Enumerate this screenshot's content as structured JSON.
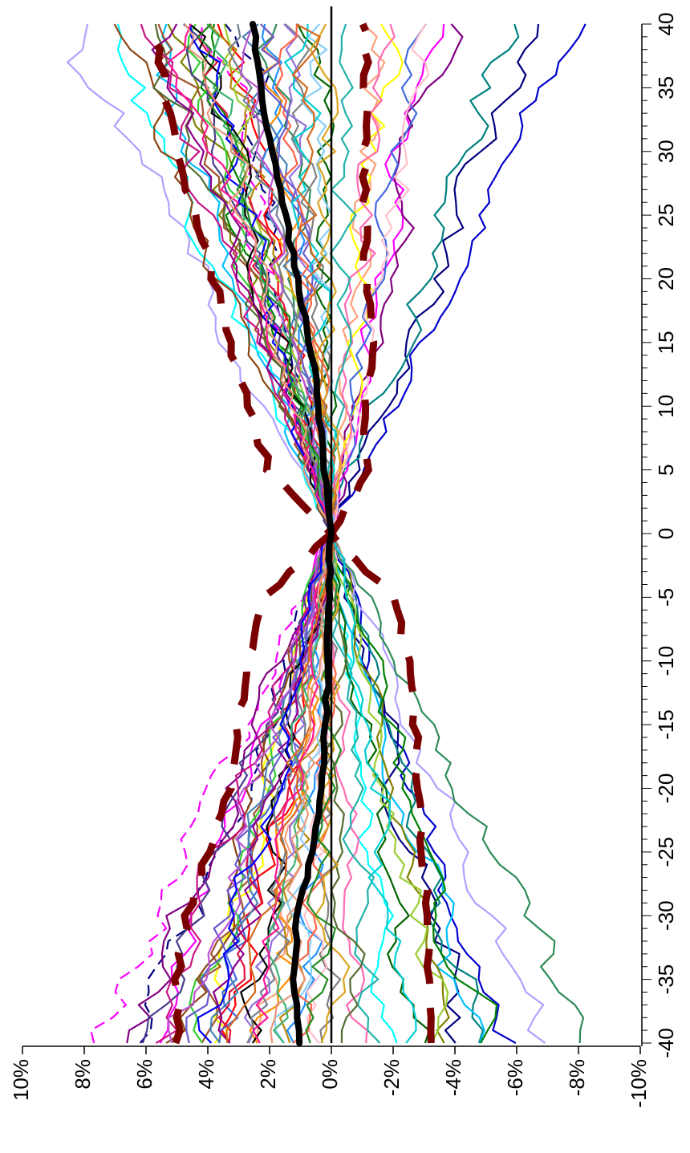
{
  "chart_data": {
    "type": "line",
    "orientation": "rotated-90",
    "x": [
      -40,
      -39,
      -38,
      -37,
      -36,
      -35,
      -34,
      -33,
      -32,
      -31,
      -30,
      -29,
      -28,
      -27,
      -26,
      -25,
      -24,
      -23,
      -22,
      -21,
      -20,
      -19,
      -18,
      -17,
      -16,
      -15,
      -14,
      -13,
      -12,
      -11,
      -10,
      -9,
      -8,
      -7,
      -6,
      -5,
      -4,
      -3,
      -2,
      -1,
      0,
      1,
      2,
      3,
      4,
      5,
      6,
      7,
      8,
      9,
      10,
      11,
      12,
      13,
      14,
      15,
      16,
      17,
      18,
      19,
      20,
      21,
      22,
      23,
      24,
      25,
      26,
      27,
      28,
      29,
      30,
      31,
      32,
      33,
      34,
      35,
      36,
      37,
      38,
      39,
      40
    ],
    "xlim": [
      -40,
      40
    ],
    "ylim": [
      -0.1,
      0.1
    ],
    "x_ticks": [
      "-40",
      "-35",
      "-30",
      "-25",
      "-20",
      "-15",
      "-10",
      "-5",
      "0",
      "5",
      "10",
      "15",
      "20",
      "25",
      "30",
      "35",
      "40"
    ],
    "y_ticks": [
      "10%",
      "8%",
      "6%",
      "4%",
      "2%",
      "0%",
      "-2%",
      "-4%",
      "-6%",
      "-8%",
      "-10%"
    ],
    "grid": false,
    "legend": "none",
    "mean_series": {
      "color": "#000000",
      "anchors_x": [
        -40,
        -35,
        -30,
        -25,
        -20,
        -15,
        -10,
        -5,
        0,
        5,
        10,
        15,
        20,
        25,
        30,
        35,
        40
      ],
      "anchors_y": [
        0.01,
        0.012,
        0.011,
        0.006,
        0.003,
        0.002,
        0.001,
        0.001,
        0.0,
        0.002,
        0.004,
        0.007,
        0.011,
        0.015,
        0.019,
        0.023,
        0.025
      ]
    },
    "band_upper": {
      "color": "#7b0000",
      "anchors_x": [
        -40,
        -35,
        -30,
        -25,
        -20,
        -15,
        -10,
        -5,
        0,
        5,
        10,
        15,
        20,
        25,
        30,
        35,
        40
      ],
      "anchors_y": [
        0.05,
        0.05,
        0.047,
        0.04,
        0.033,
        0.03,
        0.027,
        0.022,
        0.0,
        0.02,
        0.027,
        0.033,
        0.038,
        0.044,
        0.05,
        0.054,
        0.058
      ]
    },
    "band_lower": {
      "color": "#7b0000",
      "anchors_x": [
        -40,
        -35,
        -30,
        -25,
        -20,
        -15,
        -10,
        -5,
        0,
        5,
        10,
        15,
        20,
        25,
        30,
        35,
        40
      ],
      "anchors_y": [
        -0.032,
        -0.031,
        -0.031,
        -0.029,
        -0.028,
        -0.027,
        -0.025,
        -0.02,
        0.0,
        -0.012,
        -0.011,
        -0.013,
        -0.011,
        -0.011,
        -0.011,
        -0.011,
        -0.011
      ]
    },
    "zero_line": 0,
    "background_series": [
      {
        "color": "#0000cc",
        "dashed": false,
        "left": -0.055,
        "right": -0.08
      },
      {
        "color": "#000080",
        "dashed": false,
        "left": -0.043,
        "right": -0.068
      },
      {
        "color": "#008080",
        "dashed": false,
        "left": -0.05,
        "right": -0.058
      },
      {
        "color": "#00bfff",
        "dashed": false,
        "left": -0.045,
        "right": 0.06
      },
      {
        "color": "#ff00ff",
        "dashed": true,
        "left": 0.075,
        "right": 0.04
      },
      {
        "color": "#000080",
        "dashed": true,
        "left": 0.06,
        "right": 0.03
      },
      {
        "color": "#808000",
        "dashed": false,
        "left": -0.04,
        "right": 0.05
      },
      {
        "color": "#b0a0ff",
        "dashed": false,
        "left": -0.07,
        "right": 0.085
      },
      {
        "color": "#2e8b57",
        "dashed": false,
        "left": -0.085,
        "right": 0.02
      },
      {
        "color": "#ff00ff",
        "dashed": false,
        "left": 0.055,
        "right": -0.03
      },
      {
        "color": "#800080",
        "dashed": false,
        "left": 0.065,
        "right": -0.035
      },
      {
        "color": "#008000",
        "dashed": false,
        "left": -0.05,
        "right": 0.045
      },
      {
        "color": "#ffa07a",
        "dashed": false,
        "left": 0.02,
        "right": -0.015
      },
      {
        "color": "#ffff00",
        "dashed": false,
        "left": 0.04,
        "right": -0.02
      },
      {
        "color": "#00ffff",
        "dashed": false,
        "left": -0.02,
        "right": 0.07
      },
      {
        "color": "#ff0000",
        "dashed": false,
        "left": 0.03,
        "right": 0.03
      },
      {
        "color": "#a0522d",
        "dashed": false,
        "left": 0.045,
        "right": 0.055
      },
      {
        "color": "#4169e1",
        "dashed": false,
        "left": 0.035,
        "right": -0.025
      },
      {
        "color": "#32cd32",
        "dashed": false,
        "left": 0.045,
        "right": 0.05
      },
      {
        "color": "#808080",
        "dashed": false,
        "left": 0.0,
        "right": 0.01
      },
      {
        "color": "#ff69b4",
        "dashed": false,
        "left": -0.01,
        "right": -0.02
      },
      {
        "color": "#9370db",
        "dashed": false,
        "left": 0.025,
        "right": 0.015
      },
      {
        "color": "#b8860b",
        "dashed": false,
        "left": 0.015,
        "right": 0.035
      },
      {
        "color": "#006400",
        "dashed": false,
        "left": -0.03,
        "right": 0.005
      },
      {
        "color": "#1e90ff",
        "dashed": false,
        "left": 0.01,
        "right": 0.025
      },
      {
        "color": "#dc143c",
        "dashed": false,
        "left": 0.035,
        "right": 0.04
      },
      {
        "color": "#20b2aa",
        "dashed": false,
        "left": -0.015,
        "right": -0.005
      },
      {
        "color": "#8b4513",
        "dashed": false,
        "left": 0.05,
        "right": 0.07
      },
      {
        "color": "#483d8b",
        "dashed": false,
        "left": 0.06,
        "right": 0.045
      },
      {
        "color": "#ff8c00",
        "dashed": false,
        "left": 0.02,
        "right": 0.02
      },
      {
        "color": "#ffc0cb",
        "dashed": false,
        "left": 0.005,
        "right": -0.03
      },
      {
        "color": "#556b2f",
        "dashed": false,
        "left": -0.005,
        "right": 0.06
      },
      {
        "color": "#4682b4",
        "dashed": false,
        "left": 0.04,
        "right": 0.025
      },
      {
        "color": "#c71585",
        "dashed": false,
        "left": 0.055,
        "right": 0.06
      },
      {
        "color": "#87cefa",
        "dashed": false,
        "left": 0.015,
        "right": 0.005
      },
      {
        "color": "#9acd32",
        "dashed": false,
        "left": -0.035,
        "right": 0.035
      },
      {
        "color": "#000000",
        "dashed": false,
        "left": 0.03,
        "right": 0.045
      },
      {
        "color": "#708090",
        "dashed": false,
        "left": 0.025,
        "right": 0.03
      },
      {
        "color": "#ff6347",
        "dashed": false,
        "left": 0.01,
        "right": 0.015
      },
      {
        "color": "#6a5acd",
        "dashed": false,
        "left": 0.045,
        "right": 0.02
      },
      {
        "color": "#00ced1",
        "dashed": false,
        "left": -0.025,
        "right": 0.01
      },
      {
        "color": "#8b008b",
        "dashed": false,
        "left": 0.035,
        "right": 0.055
      },
      {
        "color": "#daa520",
        "dashed": false,
        "left": 0.0,
        "right": 0.0
      },
      {
        "color": "#3cb371",
        "dashed": false,
        "left": 0.02,
        "right": 0.04
      },
      {
        "color": "#ba55d3",
        "dashed": false,
        "left": 0.05,
        "right": 0.03
      },
      {
        "color": "#0000ff",
        "dashed": false,
        "left": 0.04,
        "right": 0.045
      },
      {
        "color": "#ff1493",
        "dashed": false,
        "left": 0.025,
        "right": 0.05
      },
      {
        "color": "#228b22",
        "dashed": false,
        "left": 0.005,
        "right": 0.04
      },
      {
        "color": "#d2691e",
        "dashed": false,
        "left": 0.03,
        "right": 0.01
      },
      {
        "color": "#e9967a",
        "dashed": false,
        "left": 0.015,
        "right": 0.045
      }
    ]
  }
}
